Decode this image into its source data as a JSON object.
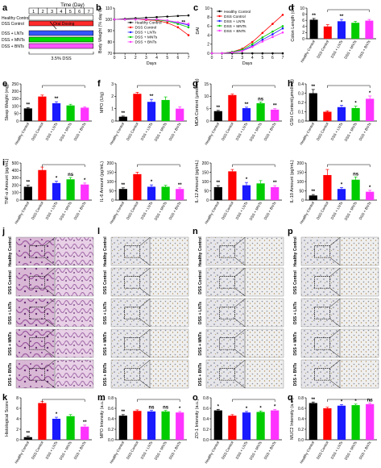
{
  "colors": {
    "healthy": "#000000",
    "dss": "#ff0000",
    "lnts": "#1a1aff",
    "mnts": "#00cc00",
    "bnts": "#ff33ff",
    "schematic_healthy": "#ffffff",
    "schematic_dss": "#ff2a2a",
    "schematic_lnts": "#3355ff",
    "schematic_mnts": "#00dd00",
    "schematic_bnts": "#ff55ff"
  },
  "panel_a": {
    "letter": "a",
    "time_label": "Time (Day)",
    "days": [
      "1",
      "2",
      "3",
      "4",
      "5",
      "6",
      "7"
    ],
    "groups": [
      "Healthy Control",
      "DSS Control",
      "DSS + LNTs",
      "DSS + MNTs",
      "DSS + BNTs"
    ],
    "annotation": "Oral Dosing",
    "dss_label": "3.5% DSS"
  },
  "chart_data": [
    {
      "panel": "b",
      "type": "line",
      "ylabel": "Body Weight (% day 0)",
      "xlabel": "Days",
      "x": [
        0,
        1,
        2,
        3,
        4,
        5,
        6,
        7
      ],
      "ylim": [
        70,
        110
      ],
      "yticks": [
        "70",
        "80",
        "90",
        "100",
        "110"
      ],
      "legend": [
        "Healthy Control",
        "DSS Control",
        "DSS + LNTs",
        "DSS + MNTs",
        "DSS + BNTs"
      ],
      "legend_position": "center",
      "annotation": "**",
      "series": [
        {
          "name": "Healthy Control",
          "values": [
            100,
            100.5,
            101,
            101.5,
            102,
            102.5,
            103,
            103.5
          ]
        },
        {
          "name": "DSS Control",
          "values": [
            100,
            100,
            100,
            99.5,
            99,
            97,
            93,
            86
          ]
        },
        {
          "name": "DSS + LNTs",
          "values": [
            100,
            100,
            100,
            100,
            99.5,
            99,
            97,
            95
          ]
        },
        {
          "name": "DSS + MNTs",
          "values": [
            100,
            100,
            100,
            100,
            99.5,
            98.5,
            96,
            93
          ]
        },
        {
          "name": "DSS + BNTs",
          "values": [
            100,
            100,
            100,
            100,
            100,
            99,
            97.5,
            96
          ]
        }
      ]
    },
    {
      "panel": "c",
      "type": "line",
      "ylabel": "DAI",
      "xlabel": "Days",
      "x": [
        0,
        1,
        2,
        3,
        4,
        5,
        6,
        7
      ],
      "ylim": [
        0,
        10
      ],
      "yticks": [
        "0",
        "2",
        "4",
        "6",
        "8",
        "10"
      ],
      "legend": [
        "Healthy Control",
        "DSS Control",
        "DSS + LNTs",
        "DSS + MNTs",
        "DSS + BNTs"
      ],
      "legend_position": "top-left",
      "series": [
        {
          "name": "Healthy Control",
          "values": [
            0,
            0,
            0,
            0,
            0,
            0,
            0,
            0
          ]
        },
        {
          "name": "DSS Control",
          "values": [
            0,
            0,
            0.3,
            1,
            2.5,
            4.5,
            6.5,
            8.5
          ]
        },
        {
          "name": "DSS + LNTs",
          "values": [
            0,
            0,
            0.2,
            0.6,
            1.6,
            3,
            4.2,
            5.5
          ]
        },
        {
          "name": "DSS + MNTs",
          "values": [
            0,
            0,
            0.3,
            0.8,
            2,
            3.5,
            4.8,
            6
          ]
        },
        {
          "name": "DSS + BNTs",
          "values": [
            0,
            0,
            0.2,
            0.5,
            1.4,
            2.6,
            3.6,
            4.6
          ]
        }
      ]
    },
    {
      "panel": "d",
      "type": "bar",
      "ylabel": "Colon Length (cm)",
      "ylim": [
        0,
        10
      ],
      "yticks": [
        "0",
        "2",
        "4",
        "6",
        "8",
        "10"
      ],
      "categories": [
        "Healthy Control",
        "DSS Control",
        "DSS + LNTs",
        "DSS + MNTs",
        "DSS + BNTs"
      ],
      "values": [
        6.2,
        4.0,
        5.7,
        5.2,
        5.9
      ],
      "errors": [
        0.4,
        0.6,
        0.6,
        0.5,
        0.4
      ],
      "annotations": [
        "**",
        "**"
      ]
    },
    {
      "panel": "e",
      "type": "bar",
      "ylabel": "Sleep Weight (mg)",
      "ylim": [
        0,
        250
      ],
      "yticks": [
        "0",
        "50",
        "100",
        "150",
        "200",
        "250"
      ],
      "categories": [
        "Healthy Control",
        "DSS Control",
        "DSS + LNTs",
        "DSS + MNTs",
        "DSS + BNTs"
      ],
      "values": [
        85,
        165,
        120,
        105,
        90
      ],
      "errors": [
        5,
        10,
        10,
        8,
        6
      ],
      "annotations": [
        "**",
        "**"
      ]
    },
    {
      "panel": "f",
      "type": "bar",
      "ylabel": "MPO (U/g)",
      "ylim": [
        0,
        3
      ],
      "yticks": [
        "0",
        "1",
        "2",
        "3"
      ],
      "categories": [
        "Healthy Control",
        "DSS Control",
        "DSS + LNTs",
        "DSS + MNTs",
        "DSS + BNTs"
      ],
      "values": [
        0.35,
        2.2,
        1.55,
        1.7,
        1.0
      ],
      "errors": [
        0.05,
        0.12,
        0.2,
        0.25,
        0.15
      ],
      "annotations": [
        "**",
        "**"
      ]
    },
    {
      "panel": "g",
      "type": "bar",
      "ylabel": "MDA Content (μmol/mg)",
      "ylim": [
        0,
        15
      ],
      "yticks": [
        "0",
        "5",
        "10",
        "15"
      ],
      "categories": [
        "Healthy Control",
        "DSS Control",
        "DSS + LNTs",
        "DSS + MNTs",
        "DSS + BNTs"
      ],
      "values": [
        4.0,
        10.5,
        5.2,
        7.2,
        4.6
      ],
      "errors": [
        0.3,
        0.4,
        0.4,
        0.5,
        0.4
      ],
      "annotations": [
        "**",
        "**",
        "ns",
        "**"
      ]
    },
    {
      "panel": "h",
      "type": "bar",
      "ylabel": "GSH Content(μmol/mg)",
      "ylim": [
        0,
        0.4
      ],
      "yticks": [
        "0.0",
        "0.1",
        "0.2",
        "0.3",
        "0.4"
      ],
      "categories": [
        "Healthy Control",
        "DSS Control",
        "DSS + LNTs",
        "DSS + MNTs",
        "DSS + BNTs"
      ],
      "values": [
        0.3,
        0.1,
        0.15,
        0.14,
        0.24
      ],
      "errors": [
        0.04,
        0.01,
        0.02,
        0.02,
        0.03
      ],
      "annotations": [
        "**",
        "*",
        "*",
        "*"
      ]
    },
    {
      "panel": "i1",
      "type": "bar",
      "ylabel": "TNF-α Amount (pg/mL)",
      "ylim": [
        0,
        500
      ],
      "yticks": [
        "0",
        "100",
        "200",
        "300",
        "400",
        "500"
      ],
      "categories": [
        "Healthy Control",
        "DSS Control",
        "DSS + LNTs",
        "DSS + MNTs",
        "DSS + BNTs"
      ],
      "values": [
        180,
        405,
        230,
        280,
        210
      ],
      "errors": [
        20,
        40,
        25,
        25,
        20
      ],
      "annotations": [
        "**",
        "*",
        "ns",
        "*"
      ]
    },
    {
      "panel": "i2",
      "type": "bar",
      "ylabel": "IL-6 Amount (pg/mL)",
      "ylim": [
        0,
        200
      ],
      "yticks": [
        "0",
        "50",
        "100",
        "150",
        "200"
      ],
      "categories": [
        "Healthy Control",
        "DSS Control",
        "DSS + LNTs",
        "DSS + MNTs",
        "DSS + BNTs"
      ],
      "values": [
        60,
        140,
        72,
        72,
        60
      ],
      "errors": [
        6,
        10,
        10,
        8,
        6
      ],
      "annotations": [
        "**",
        "*",
        "**"
      ]
    },
    {
      "panel": "i3",
      "type": "bar",
      "ylabel": "IL-12 Amount (pg/mL)",
      "ylim": [
        0,
        200
      ],
      "yticks": [
        "0",
        "50",
        "100",
        "150",
        "200"
      ],
      "categories": [
        "Healthy Control",
        "DSS Control",
        "DSS + LNTs",
        "DSS + MNTs",
        "DSS + BNTs"
      ],
      "values": [
        70,
        155,
        80,
        90,
        70
      ],
      "errors": [
        8,
        10,
        15,
        15,
        8
      ],
      "annotations": [
        "**",
        "*",
        "**"
      ]
    },
    {
      "panel": "i4",
      "type": "bar",
      "ylabel": "IL-10 Amount (pg/mL)",
      "ylim": [
        0,
        200
      ],
      "yticks": [
        "0",
        "50",
        "100",
        "150",
        "200"
      ],
      "categories": [
        "Healthy Control",
        "DSS Control",
        "DSS + LNTs",
        "DSS + MNTs",
        "DSS + BNTs"
      ],
      "values": [
        25,
        135,
        60,
        110,
        45
      ],
      "errors": [
        5,
        30,
        8,
        15,
        8
      ],
      "annotations": [
        "**",
        "*",
        "ns",
        "*"
      ]
    },
    {
      "panel": "k",
      "type": "bar",
      "ylabel": "Histological Score",
      "ylim": [
        0,
        8
      ],
      "yticks": [
        "0",
        "2",
        "4",
        "6",
        "8"
      ],
      "categories": [
        "Healthy Control",
        "DSS Control",
        "DSS + LNTs",
        "DSS + MNTs",
        "DSS + BNTs"
      ],
      "values": [
        0.5,
        7.0,
        4.0,
        4.5,
        2.5
      ],
      "errors": [
        0.2,
        0.3,
        0.3,
        0.3,
        0.3
      ],
      "annotations": [
        "**",
        "*",
        "**"
      ]
    },
    {
      "panel": "m",
      "type": "bar",
      "ylabel": "MPO Intensity (a.u.)",
      "ylim": [
        0,
        0.8
      ],
      "yticks": [
        "0.0",
        "0.2",
        "0.4",
        "0.6",
        "0.8"
      ],
      "categories": [
        "Healthy Control",
        "DSS Control",
        "DSS + LNTs",
        "DSS + MNTs",
        "DSS + BNTs"
      ],
      "values": [
        0.46,
        0.55,
        0.54,
        0.54,
        0.52
      ],
      "errors": [
        0.02,
        0.02,
        0.02,
        0.02,
        0.02
      ],
      "annotations": [
        "**",
        "ns",
        "ns",
        "*"
      ]
    },
    {
      "panel": "o",
      "type": "bar",
      "ylabel": "ZO-1 Intensity (a.u.)",
      "ylim": [
        0,
        0.8
      ],
      "yticks": [
        "0.0",
        "0.2",
        "0.4",
        "0.6",
        "0.8"
      ],
      "categories": [
        "Healthy Control",
        "DSS Control",
        "DSS + LNTs",
        "DSS + MNTs",
        "DSS + BNTs"
      ],
      "values": [
        0.56,
        0.46,
        0.52,
        0.53,
        0.56
      ],
      "errors": [
        0.02,
        0.02,
        0.02,
        0.02,
        0.02
      ],
      "annotations": [
        "*",
        "*",
        "*",
        "*"
      ]
    },
    {
      "panel": "q",
      "type": "bar",
      "ylabel": "MUC2 Intensity (a.u.)",
      "ylim": [
        0,
        0.8
      ],
      "yticks": [
        "0.0",
        "0.2",
        "0.4",
        "0.6",
        "0.8"
      ],
      "categories": [
        "Healthy Control",
        "DSS Control",
        "DSS + LNTs",
        "DSS + MNTs",
        "DSS + BNTs"
      ],
      "values": [
        0.7,
        0.6,
        0.65,
        0.66,
        0.68
      ],
      "errors": [
        0.02,
        0.02,
        0.02,
        0.02,
        0.02
      ],
      "annotations": [
        "**",
        "*",
        "*",
        "ns"
      ]
    }
  ],
  "histology": {
    "rows": [
      "Healthy Control",
      "DSS Control",
      "DSS + LNTs",
      "DSS + MNTs",
      "DSS + BNTs"
    ],
    "panels": [
      {
        "letter": "j",
        "stain": "he"
      },
      {
        "letter": "l",
        "stain": "ihc"
      },
      {
        "letter": "n",
        "stain": "ihc"
      },
      {
        "letter": "p",
        "stain": "ihc"
      }
    ]
  }
}
